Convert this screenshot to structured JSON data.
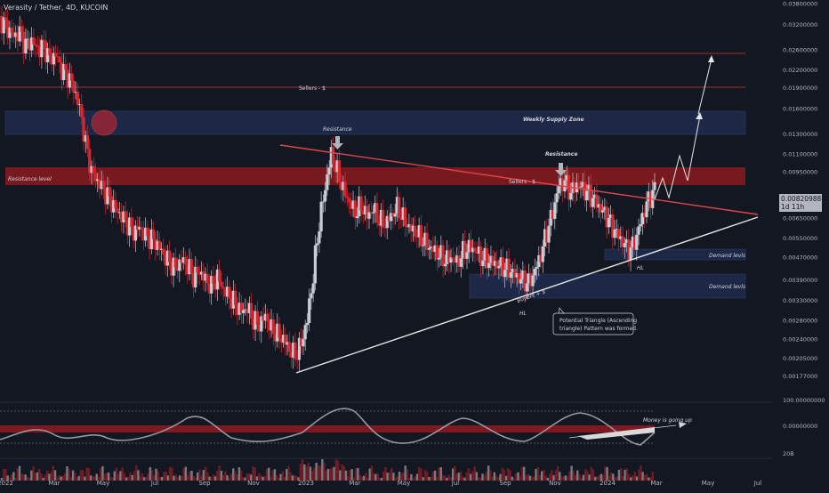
{
  "header": {
    "title": "Verasity / Tether, 4D, KUCOIN"
  },
  "colors": {
    "background": "#131722",
    "bull": "#c9ccd3",
    "bear": "#d9262e",
    "resistance_line": "#e0454d",
    "support_line": "#e6e6e6",
    "zone_blue": "#1e2a4a",
    "zone_red": "#8b1a20"
  },
  "price_tag": {
    "price": "0.00820988",
    "countdown": "1d 11h"
  },
  "annotations": {
    "sellers_top": "Sellers - $",
    "sellers_mid": "Sellers - $",
    "weekly_supply": "Weekly Supply Zone",
    "resistance_level": "Resistance level",
    "resistance_1": "Resistance",
    "resistance_2": "Resistance",
    "demand_1": "Demand levls",
    "demand_2": "Demand levls",
    "buyers": "Buyers + $",
    "hl_1": "HL",
    "hl_2": "HL",
    "triangle_note_1": "Potential Triangle (Ascending",
    "triangle_note_2": "triangle) Pattern was formed.",
    "money_up": "Money is going up"
  },
  "chart_data": {
    "type": "candlestick",
    "title": "Verasity / Tether, 4D, KUCOIN",
    "y_scale": "log",
    "ylim": [
      0.0015,
      0.038
    ],
    "y_ticks": [
      "0.03800000",
      "0.03200000",
      "0.02600000",
      "0.02200000",
      "0.01900000",
      "0.01600000",
      "0.01300000",
      "0.01100000",
      "0.00950000",
      "0.00820988",
      "0.00650000",
      "0.00550000",
      "0.00470000",
      "0.00390000",
      "0.00330000",
      "0.00280000",
      "0.00240000",
      "0.00205000",
      "0.00177000"
    ],
    "x_ticks": [
      "2022",
      "Mar",
      "May",
      "Jul",
      "Sep",
      "Nov",
      "2023",
      "Mar",
      "May",
      "Jul",
      "Sep",
      "Nov",
      "2024",
      "Mar",
      "May",
      "Jul"
    ],
    "oscillator_ticks": [
      "100.00000000",
      "0.00000000"
    ],
    "volume_tick": "20B",
    "last_price": 0.00820988,
    "levels": [
      {
        "name": "Sellers top",
        "price": 0.0255
      },
      {
        "name": "Sellers mid",
        "price": 0.0195
      }
    ],
    "zones": [
      {
        "name": "Weekly Supply Zone",
        "from": 0.0138,
        "to": 0.0163
      },
      {
        "name": "Resistance level",
        "from": 0.0091,
        "to": 0.0101
      },
      {
        "name": "Demand levls 1",
        "from": 0.0049,
        "to": 0.0052
      },
      {
        "name": "Demand levls 2",
        "from": 0.0036,
        "to": 0.0043
      }
    ],
    "trendlines": [
      {
        "name": "resistance",
        "from": [
          "2022-11",
          0.0123
        ],
        "to": [
          "2024-07",
          0.007
        ]
      },
      {
        "name": "support",
        "from": [
          "2022-12",
          0.00205
        ],
        "to": [
          "2024-07",
          0.0067
        ]
      }
    ],
    "series": [
      {
        "name": "price",
        "values": [
          0.033,
          0.031,
          0.029,
          0.03,
          0.027,
          0.028,
          0.026,
          0.027,
          0.024,
          0.025,
          0.022,
          0.021,
          0.019,
          0.016,
          0.012,
          0.0095,
          0.0088,
          0.0082,
          0.0076,
          0.007,
          0.0066,
          0.0062,
          0.0058,
          0.006,
          0.0056,
          0.0055,
          0.0052,
          0.0048,
          0.0045,
          0.0043,
          0.0046,
          0.0044,
          0.004,
          0.0042,
          0.0039,
          0.0037,
          0.004,
          0.0036,
          0.0034,
          0.0032,
          0.003,
          0.0031,
          0.0028,
          0.0027,
          0.0029,
          0.0026,
          0.0025,
          0.0024,
          0.0022,
          0.0021,
          0.0023,
          0.0028,
          0.004,
          0.0062,
          0.0083,
          0.011,
          0.0095,
          0.0082,
          0.0074,
          0.0068,
          0.0072,
          0.0066,
          0.007,
          0.0064,
          0.0062,
          0.0066,
          0.0071,
          0.0065,
          0.006,
          0.0058,
          0.0055,
          0.0052,
          0.005,
          0.0048,
          0.0046,
          0.0047,
          0.0045,
          0.0049,
          0.0051,
          0.005,
          0.0047,
          0.0046,
          0.0045,
          0.0044,
          0.0043,
          0.0042,
          0.004,
          0.0039,
          0.0038,
          0.0042,
          0.0048,
          0.0058,
          0.0068,
          0.0085,
          0.0088,
          0.008,
          0.0086,
          0.0083,
          0.0079,
          0.0075,
          0.007,
          0.0066,
          0.006,
          0.0056,
          0.0052,
          0.005,
          0.0056,
          0.0066,
          0.0076,
          0.0082
        ]
      }
    ],
    "projection": [
      0.0082,
      0.0102,
      0.011,
      0.0092,
      0.013,
      0.016,
      0.026
    ]
  }
}
